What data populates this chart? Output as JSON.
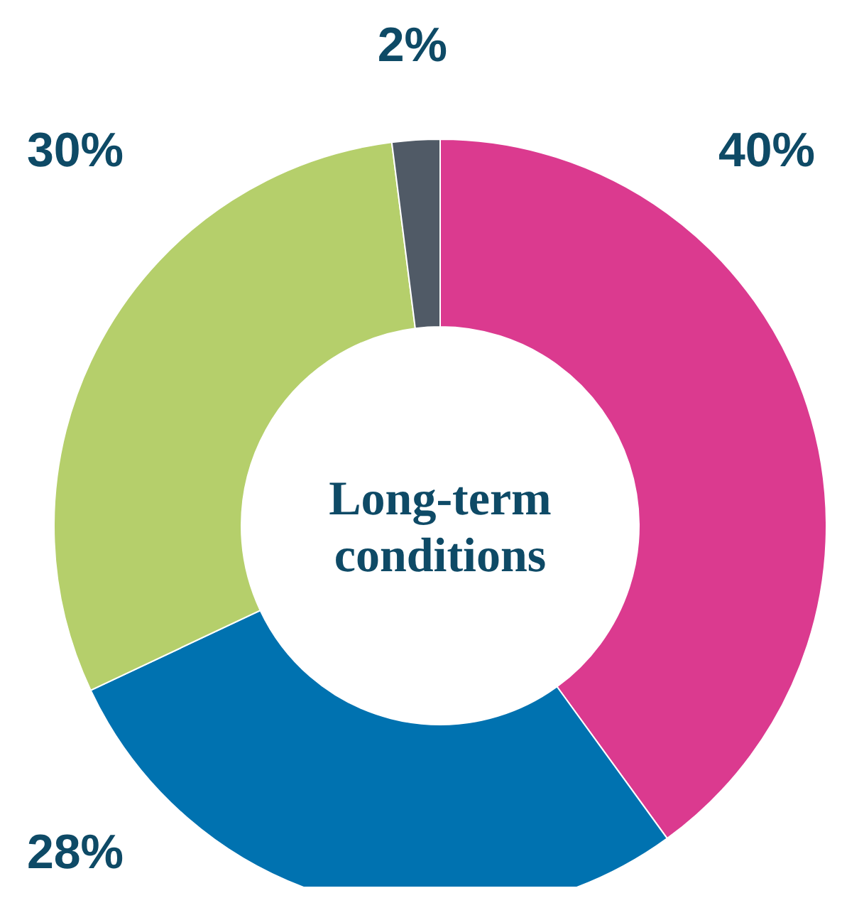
{
  "chart_data": {
    "type": "donut",
    "title": "Long-term conditions",
    "categories": [
      null,
      null,
      null,
      null
    ],
    "values": [
      40,
      28,
      30,
      2
    ],
    "colors": [
      "#db3a8f",
      "#0072b0",
      "#b5cf6b",
      "#505a66"
    ],
    "value_labels": [
      "40%",
      "28%",
      "30%",
      "2%"
    ]
  }
}
